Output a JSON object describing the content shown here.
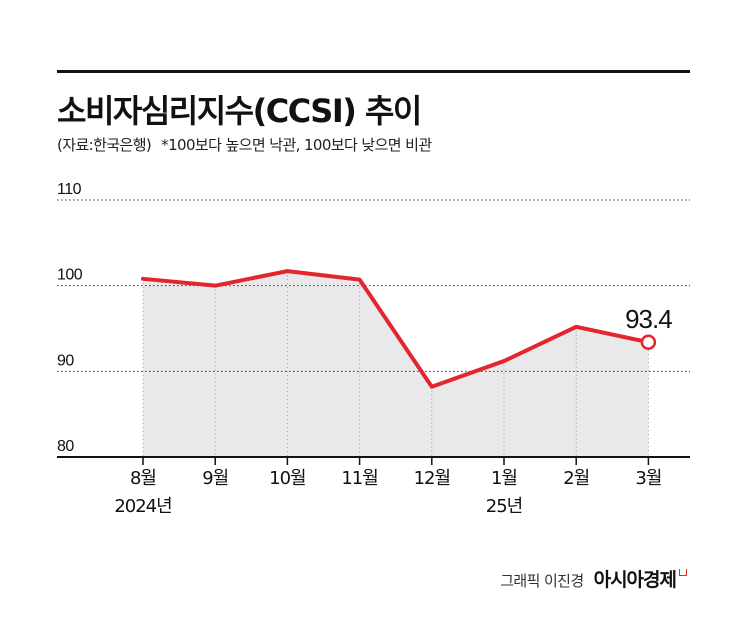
{
  "header": {
    "title": "소비자심리지수(CCSI) 추이",
    "source": "(자료:한국은행)",
    "note": "*100보다 높으면 낙관, 100보다 낮으면 비관"
  },
  "footer": {
    "credit": "그래픽 이진경",
    "brand": "아시아경제"
  },
  "colors": {
    "line": "#e3262e",
    "area": "#e9e9ec",
    "axis": "#111111",
    "grid": "#333333",
    "text": "#111111"
  },
  "chart_data": {
    "type": "area",
    "title": "소비자심리지수(CCSI) 추이",
    "categories": [
      "8월",
      "9월",
      "10월",
      "11월",
      "12월",
      "1월",
      "2월",
      "3월"
    ],
    "year_labels": [
      "2024년",
      "",
      "",
      "",
      "",
      "25년",
      "",
      ""
    ],
    "series": [
      {
        "values": [
          100.8,
          100.0,
          101.7,
          100.7,
          88.2,
          91.2,
          95.2,
          93.4
        ]
      }
    ],
    "y_ticks": [
      80,
      90,
      100,
      110
    ],
    "ylim": [
      80,
      110
    ],
    "grid": true,
    "grid_style": "dotted",
    "last_point_label": "93.4"
  }
}
